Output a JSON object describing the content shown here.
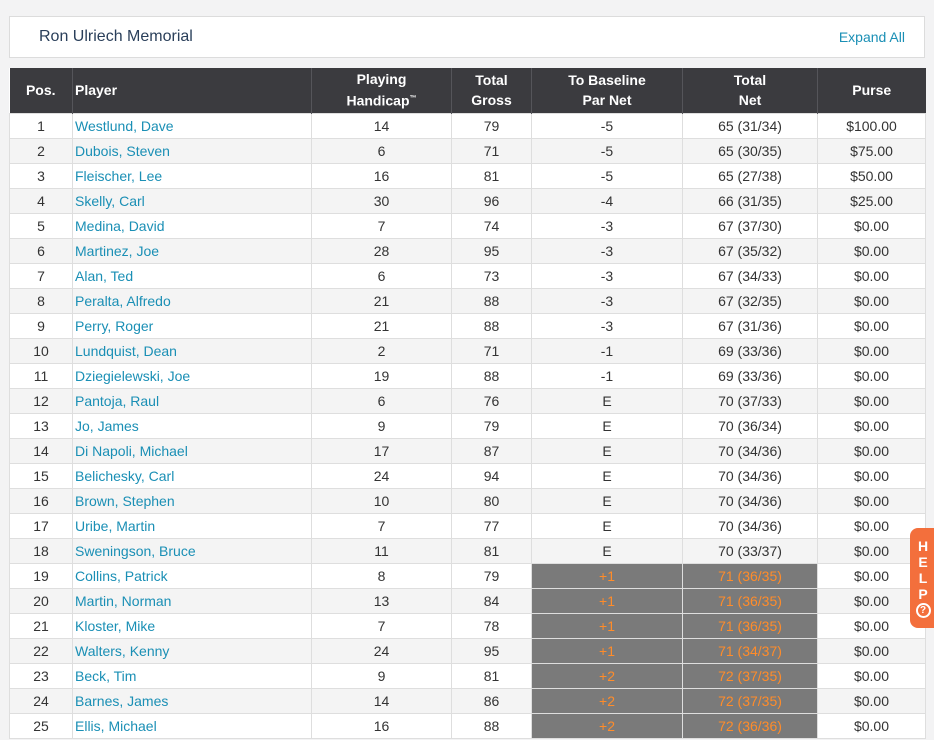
{
  "header": {
    "title": "Ron Ulriech Memorial",
    "expand_label": "Expand All"
  },
  "table": {
    "headers": {
      "pos": "Pos.",
      "player": "Player",
      "handicap_l1": "Playing",
      "handicap_l2": "Handicap",
      "handicap_tm": "™",
      "gross_l1": "Total",
      "gross_l2": "Gross",
      "baseline_l1": "To Baseline",
      "baseline_l2": "Par Net",
      "net_l1": "Total",
      "net_l2": "Net",
      "purse": "Purse"
    },
    "rows": [
      {
        "pos": "1",
        "player": "Westlund, Dave",
        "handicap": "14",
        "gross": "79",
        "par_net": "-5",
        "net": "65 (31/34)",
        "purse": "$100.00",
        "status": "under"
      },
      {
        "pos": "2",
        "player": "Dubois, Steven",
        "handicap": "6",
        "gross": "71",
        "par_net": "-5",
        "net": "65 (30/35)",
        "purse": "$75.00",
        "status": "under"
      },
      {
        "pos": "3",
        "player": "Fleischer, Lee",
        "handicap": "16",
        "gross": "81",
        "par_net": "-5",
        "net": "65 (27/38)",
        "purse": "$50.00",
        "status": "under"
      },
      {
        "pos": "4",
        "player": "Skelly, Carl",
        "handicap": "30",
        "gross": "96",
        "par_net": "-4",
        "net": "66 (31/35)",
        "purse": "$25.00",
        "status": "under"
      },
      {
        "pos": "5",
        "player": "Medina, David",
        "handicap": "7",
        "gross": "74",
        "par_net": "-3",
        "net": "67 (37/30)",
        "purse": "$0.00",
        "status": "under"
      },
      {
        "pos": "6",
        "player": "Martinez, Joe",
        "handicap": "28",
        "gross": "95",
        "par_net": "-3",
        "net": "67 (35/32)",
        "purse": "$0.00",
        "status": "under"
      },
      {
        "pos": "7",
        "player": "Alan, Ted",
        "handicap": "6",
        "gross": "73",
        "par_net": "-3",
        "net": "67 (34/33)",
        "purse": "$0.00",
        "status": "under"
      },
      {
        "pos": "8",
        "player": "Peralta, Alfredo",
        "handicap": "21",
        "gross": "88",
        "par_net": "-3",
        "net": "67 (32/35)",
        "purse": "$0.00",
        "status": "under"
      },
      {
        "pos": "9",
        "player": "Perry, Roger",
        "handicap": "21",
        "gross": "88",
        "par_net": "-3",
        "net": "67 (31/36)",
        "purse": "$0.00",
        "status": "under"
      },
      {
        "pos": "10",
        "player": "Lundquist, Dean",
        "handicap": "2",
        "gross": "71",
        "par_net": "-1",
        "net": "69 (33/36)",
        "purse": "$0.00",
        "status": "under"
      },
      {
        "pos": "11",
        "player": "Dziegielewski, Joe",
        "handicap": "19",
        "gross": "88",
        "par_net": "-1",
        "net": "69 (33/36)",
        "purse": "$0.00",
        "status": "under"
      },
      {
        "pos": "12",
        "player": "Pantoja, Raul",
        "handicap": "6",
        "gross": "76",
        "par_net": "E",
        "net": "70 (37/33)",
        "purse": "$0.00",
        "status": "even"
      },
      {
        "pos": "13",
        "player": "Jo, James",
        "handicap": "9",
        "gross": "79",
        "par_net": "E",
        "net": "70 (36/34)",
        "purse": "$0.00",
        "status": "even"
      },
      {
        "pos": "14",
        "player": "Di Napoli, Michael",
        "handicap": "17",
        "gross": "87",
        "par_net": "E",
        "net": "70 (34/36)",
        "purse": "$0.00",
        "status": "even"
      },
      {
        "pos": "15",
        "player": "Belichesky, Carl",
        "handicap": "24",
        "gross": "94",
        "par_net": "E",
        "net": "70 (34/36)",
        "purse": "$0.00",
        "status": "even"
      },
      {
        "pos": "16",
        "player": "Brown, Stephen",
        "handicap": "10",
        "gross": "80",
        "par_net": "E",
        "net": "70 (34/36)",
        "purse": "$0.00",
        "status": "even"
      },
      {
        "pos": "17",
        "player": "Uribe, Martin",
        "handicap": "7",
        "gross": "77",
        "par_net": "E",
        "net": "70 (34/36)",
        "purse": "$0.00",
        "status": "even"
      },
      {
        "pos": "18",
        "player": "Sweningson, Bruce",
        "handicap": "11",
        "gross": "81",
        "par_net": "E",
        "net": "70 (33/37)",
        "purse": "$0.00",
        "status": "even"
      },
      {
        "pos": "19",
        "player": "Collins, Patrick",
        "handicap": "8",
        "gross": "79",
        "par_net": "+1",
        "net": "71 (36/35)",
        "purse": "$0.00",
        "status": "over"
      },
      {
        "pos": "20",
        "player": "Martin, Norman",
        "handicap": "13",
        "gross": "84",
        "par_net": "+1",
        "net": "71 (36/35)",
        "purse": "$0.00",
        "status": "over"
      },
      {
        "pos": "21",
        "player": "Kloster, Mike",
        "handicap": "7",
        "gross": "78",
        "par_net": "+1",
        "net": "71 (36/35)",
        "purse": "$0.00",
        "status": "over"
      },
      {
        "pos": "22",
        "player": "Walters, Kenny",
        "handicap": "24",
        "gross": "95",
        "par_net": "+1",
        "net": "71 (34/37)",
        "purse": "$0.00",
        "status": "over"
      },
      {
        "pos": "23",
        "player": "Beck, Tim",
        "handicap": "9",
        "gross": "81",
        "par_net": "+2",
        "net": "72 (37/35)",
        "purse": "$0.00",
        "status": "over"
      },
      {
        "pos": "24",
        "player": "Barnes, James",
        "handicap": "14",
        "gross": "86",
        "par_net": "+2",
        "net": "72 (37/35)",
        "purse": "$0.00",
        "status": "over"
      },
      {
        "pos": "25",
        "player": "Ellis, Michael",
        "handicap": "16",
        "gross": "88",
        "par_net": "+2",
        "net": "72 (36/36)",
        "purse": "$0.00",
        "status": "over"
      }
    ]
  },
  "help": {
    "letters": [
      "H",
      "E",
      "L",
      "P"
    ],
    "icon": "question-circle-icon",
    "icon_glyph": "?"
  },
  "colors": {
    "under": "#1b1bb0",
    "even": "#2e9b2e",
    "over_text": "#ff8c2a",
    "over_bg": "#7a7a7a",
    "link": "#1a8fb5",
    "header_bg": "#3b3b3f",
    "help_bg": "#f36f3c"
  }
}
